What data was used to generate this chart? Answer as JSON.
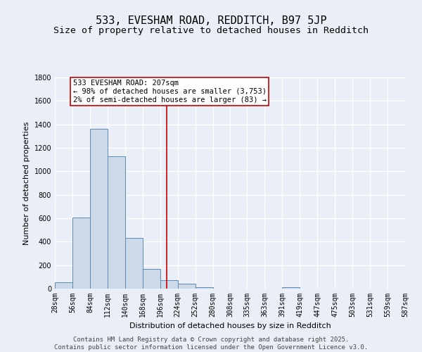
{
  "title": "533, EVESHAM ROAD, REDDITCH, B97 5JP",
  "subtitle": "Size of property relative to detached houses in Redditch",
  "xlabel": "Distribution of detached houses by size in Redditch",
  "ylabel": "Number of detached properties",
  "bin_edges": [
    28,
    56,
    84,
    112,
    140,
    168,
    196,
    224,
    252,
    280,
    308,
    335,
    363,
    391,
    419,
    447,
    475,
    503,
    531,
    559,
    587
  ],
  "bar_heights": [
    55,
    605,
    1360,
    1130,
    430,
    170,
    70,
    40,
    10,
    0,
    0,
    0,
    0,
    15,
    0,
    0,
    0,
    0,
    0,
    0
  ],
  "bar_color": "#ccd9e8",
  "bar_edge_color": "#5b8ab5",
  "property_value": 207,
  "red_line_color": "#cc0000",
  "annotation_text": "533 EVESHAM ROAD: 207sqm\n← 98% of detached houses are smaller (3,753)\n2% of semi-detached houses are larger (83) →",
  "annotation_box_color": "#ffffff",
  "annotation_box_edge": "#cc0000",
  "ylim": [
    0,
    1800
  ],
  "yticks": [
    0,
    200,
    400,
    600,
    800,
    1000,
    1200,
    1400,
    1600,
    1800
  ],
  "background_color": "#eaeff7",
  "grid_color": "#ffffff",
  "footer_line1": "Contains HM Land Registry data © Crown copyright and database right 2025.",
  "footer_line2": "Contains public sector information licensed under the Open Government Licence v3.0.",
  "title_fontsize": 11,
  "subtitle_fontsize": 9.5,
  "axis_label_fontsize": 8,
  "tick_fontsize": 7,
  "annotation_fontsize": 7.5,
  "footer_fontsize": 6.5
}
